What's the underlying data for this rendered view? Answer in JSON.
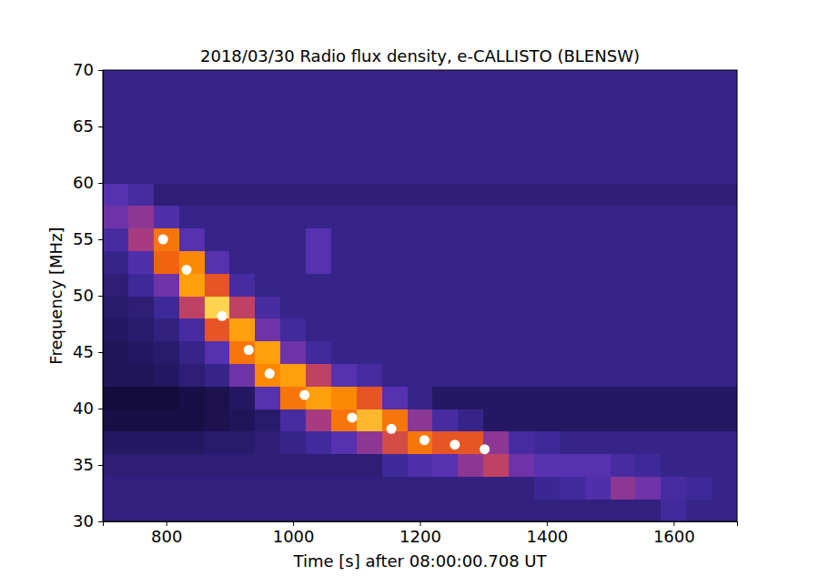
{
  "chart_data": {
    "type": "heatmap",
    "title": "2018/03/30  Radio flux density, e-CALLISTO (BLENSW)",
    "x_label": "Time [s] after 08:00:00.708 UT",
    "y_label": "Frequency [MHz]",
    "xlim": [
      700,
      1700
    ],
    "ylim": [
      30,
      70
    ],
    "xticks": [
      800,
      1000,
      1200,
      1400,
      1600
    ],
    "yticks": [
      30,
      35,
      40,
      45,
      50,
      55,
      60,
      65,
      70
    ],
    "xbins": [
      700,
      740,
      780,
      820,
      860,
      900,
      940,
      980,
      1020,
      1060,
      1100,
      1140,
      1180,
      1220,
      1260,
      1300,
      1340,
      1380,
      1420,
      1460,
      1500,
      1540,
      1580,
      1620,
      1660,
      1700
    ],
    "ybins": [
      30,
      32,
      34,
      36,
      38,
      40,
      42,
      44,
      46,
      48,
      50,
      52,
      54,
      56,
      58,
      60,
      62,
      64,
      66,
      68,
      70
    ],
    "cells": [
      [
        1.9,
        1.9,
        1.9,
        1.9,
        1.9,
        1.9,
        1.9,
        1.9,
        1.9,
        1.9,
        1.9,
        1.9,
        1.9,
        1.9,
        1.9,
        1.9,
        1.9,
        1.9,
        1.9,
        1.9,
        1.9,
        1.9,
        2.3,
        2,
        2
      ],
      [
        1.9,
        1.9,
        1.9,
        1.9,
        1.9,
        1.9,
        1.9,
        1.9,
        1.9,
        1.9,
        1.9,
        1.9,
        1.9,
        1.9,
        1.9,
        1.9,
        1.9,
        2.1,
        2.3,
        2.8,
        4,
        3.5,
        2.5,
        2.2,
        2
      ],
      [
        1.8,
        1.8,
        1.8,
        1.8,
        1.8,
        1.8,
        1.8,
        1.8,
        1.8,
        1.8,
        1.8,
        2.2,
        2.8,
        3,
        4,
        5,
        3.5,
        3,
        3,
        3,
        2.5,
        2.2,
        2,
        2,
        2
      ],
      [
        1.6,
        1.6,
        1.6,
        1.6,
        1.7,
        1.7,
        1.8,
        2,
        2.3,
        3,
        4,
        5.5,
        7,
        6,
        6,
        4,
        2.5,
        2.2,
        2,
        2,
        2,
        2,
        2,
        2,
        2
      ],
      [
        1.3,
        1.3,
        1.3,
        1.3,
        1.4,
        1.5,
        1.7,
        2.5,
        4.5,
        7,
        8.5,
        7,
        4,
        2.5,
        2,
        1.6,
        1.6,
        1.6,
        1.6,
        1.6,
        1.6,
        1.6,
        1.6,
        1.6,
        1.6
      ],
      [
        1.2,
        1.2,
        1.2,
        1.3,
        1.4,
        1.6,
        3,
        7,
        8,
        7.5,
        6,
        3,
        2,
        1.6,
        1.6,
        1.6,
        1.6,
        1.6,
        1.6,
        1.6,
        1.6,
        1.6,
        1.6,
        1.6,
        1.6
      ],
      [
        1.5,
        1.5,
        1.6,
        1.8,
        2,
        3.5,
        7.5,
        8,
        5,
        3,
        2.5,
        2,
        2,
        2,
        2,
        2,
        2,
        2,
        2,
        2,
        2,
        2,
        2,
        2,
        2
      ],
      [
        1.5,
        1.6,
        1.7,
        2,
        3,
        7,
        8,
        3.5,
        2.3,
        2,
        2,
        2,
        2,
        2,
        2,
        2,
        2,
        2,
        2,
        2,
        2,
        2,
        2,
        2,
        2
      ],
      [
        1.6,
        1.7,
        1.9,
        2.5,
        6,
        8,
        3.5,
        2.3,
        2,
        2,
        2,
        2,
        2,
        2,
        2,
        2,
        2,
        2,
        2,
        2,
        2,
        2,
        2,
        2,
        2
      ],
      [
        1.7,
        1.8,
        2.2,
        5,
        9,
        5,
        2.5,
        2,
        2,
        2,
        2,
        2,
        2,
        2,
        2,
        2,
        2,
        2,
        2,
        2,
        2,
        2,
        2,
        2,
        2
      ],
      [
        1.8,
        2.2,
        3.5,
        8,
        6,
        2.5,
        2,
        2,
        2,
        2,
        2,
        2,
        2,
        2,
        2,
        2,
        2,
        2,
        2,
        2,
        2,
        2,
        2,
        2,
        2
      ],
      [
        2,
        2.8,
        6.5,
        7.5,
        3,
        2,
        2,
        2,
        3,
        2,
        2,
        2,
        2,
        2,
        2,
        2,
        2,
        2,
        2,
        2,
        2,
        2,
        2,
        2,
        2
      ],
      [
        2.5,
        4.5,
        7,
        3,
        2,
        2,
        2,
        2,
        3,
        2,
        2,
        2,
        2,
        2,
        2,
        2,
        2,
        2,
        2,
        2,
        2,
        2,
        2,
        2,
        2
      ],
      [
        3.5,
        4,
        2.8,
        2,
        2,
        2,
        2,
        2,
        2,
        2,
        2,
        2,
        2,
        2,
        2,
        2,
        2,
        2,
        2,
        2,
        2,
        2,
        2,
        2,
        2
      ],
      [
        3,
        2.5,
        1.8,
        1.8,
        1.8,
        1.8,
        1.8,
        1.8,
        1.8,
        1.8,
        1.8,
        1.8,
        1.8,
        1.8,
        1.8,
        1.8,
        1.8,
        1.8,
        1.8,
        1.8,
        1.8,
        1.8,
        1.8,
        1.8,
        1.8
      ],
      [
        2,
        2,
        2,
        2,
        2,
        2,
        2,
        2,
        2,
        2,
        2,
        2,
        2,
        2,
        2,
        2,
        2,
        2,
        2,
        2,
        2,
        2,
        2,
        2,
        2
      ],
      [
        2,
        2,
        2,
        2,
        2,
        2,
        2,
        2,
        2,
        2,
        2,
        2,
        2,
        2,
        2,
        2,
        2,
        2,
        2,
        2,
        2,
        2,
        2,
        2,
        2
      ],
      [
        2,
        2,
        2,
        2,
        2,
        2,
        2,
        2,
        2,
        2,
        2,
        2,
        2,
        2,
        2,
        2,
        2,
        2,
        2,
        2,
        2,
        2,
        2,
        2,
        2
      ],
      [
        2,
        2,
        2,
        2,
        2,
        2,
        2,
        2,
        2,
        2,
        2,
        2,
        2,
        2,
        2,
        2,
        2,
        2,
        2,
        2,
        2,
        2,
        2,
        2,
        2
      ],
      [
        2,
        2,
        2,
        2,
        2,
        2,
        2,
        2,
        2,
        2,
        2,
        2,
        2,
        2,
        2,
        2,
        2,
        2,
        2,
        2,
        2,
        2,
        2,
        2,
        2
      ]
    ],
    "series": [
      {
        "type": "scatter",
        "color": "#ffffff",
        "marker": "circle",
        "x": [
          795,
          832,
          888,
          930,
          963,
          1018,
          1093,
          1155,
          1207,
          1255,
          1302
        ],
        "values": [
          55,
          52.3,
          48.2,
          45.2,
          43.1,
          41.2,
          39.2,
          38.2,
          37.2,
          36.8,
          36.4
        ]
      }
    ]
  }
}
